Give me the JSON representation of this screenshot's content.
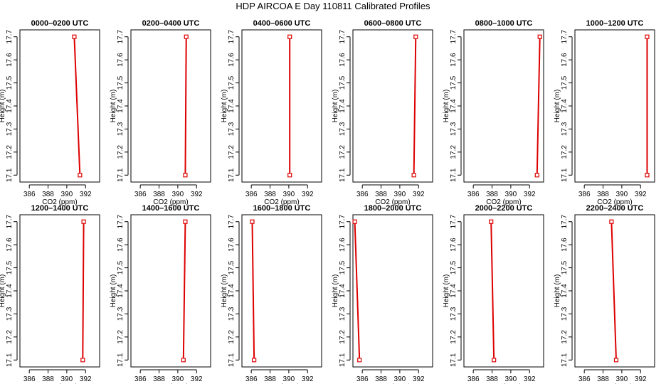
{
  "figure": {
    "title": "HDP AIRCOA E  Day 110811  Calibrated Profiles"
  },
  "chart_data": [
    {
      "type": "line",
      "title": "0000–0200 UTC",
      "xlabel": "CO2 (ppm)",
      "ylabel": "Height (m)",
      "xlim": [
        385,
        393.5
      ],
      "ylim": [
        17.07,
        17.73
      ],
      "xticks": [
        386,
        388,
        390,
        392
      ],
      "yticks": [
        17.1,
        17.2,
        17.3,
        17.4,
        17.5,
        17.6,
        17.7
      ],
      "grid": false,
      "series": [
        {
          "x": [
            391.4,
            390.8
          ],
          "y": [
            17.1,
            17.7
          ]
        }
      ]
    },
    {
      "type": "line",
      "title": "0200–0400 UTC",
      "xlabel": "CO2 (ppm)",
      "ylabel": "Height (m)",
      "xlim": [
        385,
        393.5
      ],
      "ylim": [
        17.07,
        17.73
      ],
      "xticks": [
        386,
        388,
        390,
        392
      ],
      "yticks": [
        17.1,
        17.2,
        17.3,
        17.4,
        17.5,
        17.6,
        17.7
      ],
      "grid": false,
      "series": [
        {
          "x": [
            390.8,
            390.9
          ],
          "y": [
            17.1,
            17.7
          ]
        }
      ]
    },
    {
      "type": "line",
      "title": "0400–0600 UTC",
      "xlabel": "CO2 (ppm)",
      "ylabel": "Height (m)",
      "xlim": [
        385,
        393.5
      ],
      "ylim": [
        17.07,
        17.73
      ],
      "xticks": [
        386,
        388,
        390,
        392
      ],
      "yticks": [
        17.1,
        17.2,
        17.3,
        17.4,
        17.5,
        17.6,
        17.7
      ],
      "grid": false,
      "series": [
        {
          "x": [
            390.1,
            390.1
          ],
          "y": [
            17.1,
            17.7
          ]
        }
      ]
    },
    {
      "type": "line",
      "title": "0600–0800 UTC",
      "xlabel": "CO2 (ppm)",
      "ylabel": "Height (m)",
      "xlim": [
        385,
        393.5
      ],
      "ylim": [
        17.07,
        17.73
      ],
      "xticks": [
        386,
        388,
        390,
        392
      ],
      "yticks": [
        17.1,
        17.2,
        17.3,
        17.4,
        17.5,
        17.6,
        17.7
      ],
      "grid": false,
      "series": [
        {
          "x": [
            391.5,
            391.7
          ],
          "y": [
            17.1,
            17.7
          ]
        }
      ]
    },
    {
      "type": "line",
      "title": "0800–1000 UTC",
      "xlabel": "CO2 (ppm)",
      "ylabel": "Height (m)",
      "xlim": [
        385,
        393.5
      ],
      "ylim": [
        17.07,
        17.73
      ],
      "xticks": [
        386,
        388,
        390,
        392
      ],
      "yticks": [
        17.1,
        17.2,
        17.3,
        17.4,
        17.5,
        17.6,
        17.7
      ],
      "grid": false,
      "series": [
        {
          "x": [
            392.8,
            393.1
          ],
          "y": [
            17.1,
            17.7
          ]
        }
      ]
    },
    {
      "type": "line",
      "title": "1000–1200 UTC",
      "xlabel": "CO2 (ppm)",
      "ylabel": "Height (m)",
      "xlim": [
        385,
        393.5
      ],
      "ylim": [
        17.07,
        17.73
      ],
      "xticks": [
        386,
        388,
        390,
        392
      ],
      "yticks": [
        17.1,
        17.2,
        17.3,
        17.4,
        17.5,
        17.6,
        17.7
      ],
      "grid": false,
      "series": [
        {
          "x": [
            392.7,
            392.7
          ],
          "y": [
            17.1,
            17.7
          ]
        }
      ]
    },
    {
      "type": "line",
      "title": "1200–1400 UTC",
      "xlabel": "CO2 (ppm)",
      "ylabel": "Height (m)",
      "xlim": [
        385,
        393.5
      ],
      "ylim": [
        17.07,
        17.73
      ],
      "xticks": [
        386,
        388,
        390,
        392
      ],
      "yticks": [
        17.1,
        17.2,
        17.3,
        17.4,
        17.5,
        17.6,
        17.7
      ],
      "grid": false,
      "series": [
        {
          "x": [
            391.7,
            391.8
          ],
          "y": [
            17.1,
            17.7
          ]
        }
      ]
    },
    {
      "type": "line",
      "title": "1400–1600 UTC",
      "xlabel": "CO2 (ppm)",
      "ylabel": "Height (m)",
      "xlim": [
        385,
        393.5
      ],
      "ylim": [
        17.07,
        17.73
      ],
      "xticks": [
        386,
        388,
        390,
        392
      ],
      "yticks": [
        17.1,
        17.2,
        17.3,
        17.4,
        17.5,
        17.6,
        17.7
      ],
      "grid": false,
      "series": [
        {
          "x": [
            390.6,
            390.8
          ],
          "y": [
            17.1,
            17.7
          ]
        }
      ]
    },
    {
      "type": "line",
      "title": "1600–1800 UTC",
      "xlabel": "CO2 (ppm)",
      "ylabel": "Height (m)",
      "xlim": [
        385,
        393.5
      ],
      "ylim": [
        17.07,
        17.73
      ],
      "xticks": [
        386,
        388,
        390,
        392
      ],
      "yticks": [
        17.1,
        17.2,
        17.3,
        17.4,
        17.5,
        17.6,
        17.7
      ],
      "grid": false,
      "series": [
        {
          "x": [
            386.3,
            386.1
          ],
          "y": [
            17.1,
            17.7
          ]
        }
      ]
    },
    {
      "type": "line",
      "title": "1800–2000 UTC",
      "xlabel": "CO2 (ppm)",
      "ylabel": "Height (m)",
      "xlim": [
        385,
        393.5
      ],
      "ylim": [
        17.07,
        17.73
      ],
      "xticks": [
        386,
        388,
        390,
        392
      ],
      "yticks": [
        17.1,
        17.2,
        17.3,
        17.4,
        17.5,
        17.6,
        17.7
      ],
      "grid": false,
      "series": [
        {
          "x": [
            385.7,
            385.2
          ],
          "y": [
            17.1,
            17.7
          ]
        }
      ]
    },
    {
      "type": "line",
      "title": "2000–2200 UTC",
      "xlabel": "CO2 (ppm)",
      "ylabel": "Height (m)",
      "xlim": [
        385,
        393.5
      ],
      "ylim": [
        17.07,
        17.73
      ],
      "xticks": [
        386,
        388,
        390,
        392
      ],
      "yticks": [
        17.1,
        17.2,
        17.3,
        17.4,
        17.5,
        17.6,
        17.7
      ],
      "grid": false,
      "series": [
        {
          "x": [
            388.2,
            387.9
          ],
          "y": [
            17.1,
            17.7
          ]
        }
      ]
    },
    {
      "type": "line",
      "title": "2200–2400 UTC",
      "xlabel": "CO2 (ppm)",
      "ylabel": "Height (m)",
      "xlim": [
        385,
        393.5
      ],
      "ylim": [
        17.07,
        17.73
      ],
      "xticks": [
        386,
        388,
        390,
        392
      ],
      "yticks": [
        17.1,
        17.2,
        17.3,
        17.4,
        17.5,
        17.6,
        17.7
      ],
      "grid": false,
      "series": [
        {
          "x": [
            389.4,
            388.9
          ],
          "y": [
            17.1,
            17.7
          ]
        }
      ]
    }
  ],
  "colors": {
    "line": "#dd0000",
    "marker": "#dd0000",
    "axis": "#000000"
  }
}
